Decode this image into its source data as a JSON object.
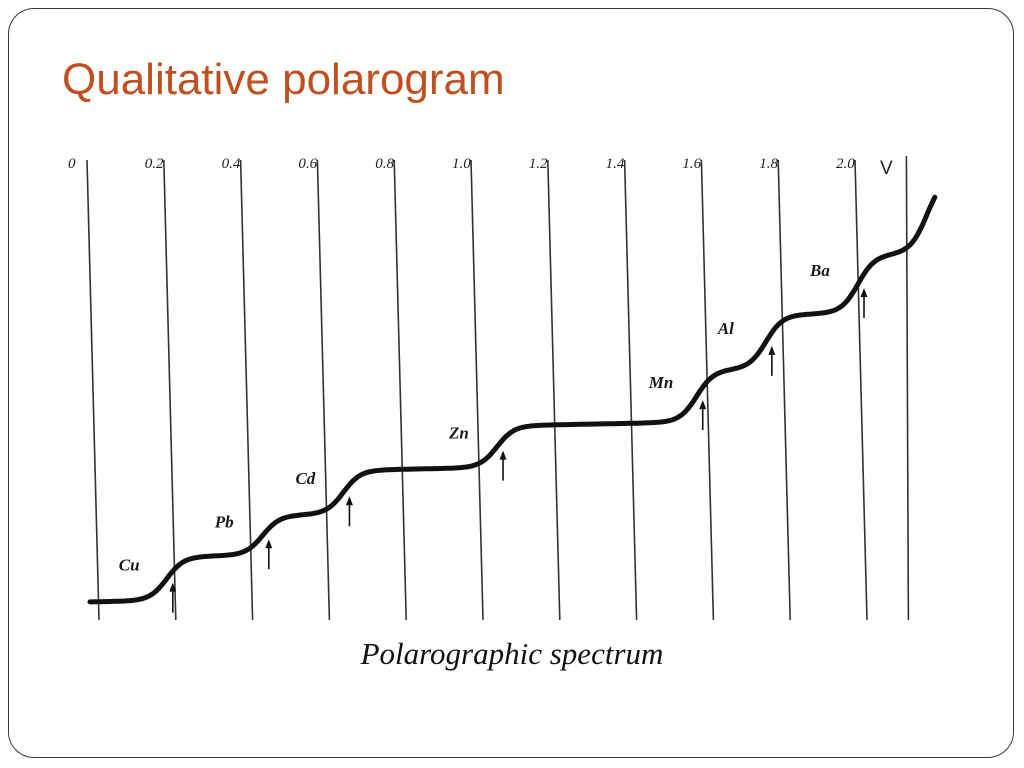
{
  "slide": {
    "title": "Qualitative polarogram",
    "caption": "Polarographic spectrum"
  },
  "chart_data": {
    "type": "line",
    "title": "",
    "xlabel": "",
    "ylabel": "",
    "x_unit": "V",
    "xlim": [
      0,
      2.0
    ],
    "ylim": [
      0,
      8
    ],
    "grid": true,
    "x_ticks": [
      {
        "value": 0,
        "label": "0"
      },
      {
        "value": 0.2,
        "label": "0.2"
      },
      {
        "value": 0.4,
        "label": "0.4"
      },
      {
        "value": 0.6,
        "label": "0.6"
      },
      {
        "value": 0.8,
        "label": "0.8"
      },
      {
        "value": 1.0,
        "label": "1.0"
      },
      {
        "value": 1.2,
        "label": "1.2"
      },
      {
        "value": 1.4,
        "label": "1.4"
      },
      {
        "value": 1.6,
        "label": "1.6"
      },
      {
        "value": 1.8,
        "label": "1.8"
      },
      {
        "value": 2.0,
        "label": "2.0"
      }
    ],
    "waves": [
      {
        "label": "Cu",
        "half_wave_potential": 0.2,
        "height": 1.05
      },
      {
        "label": "Pb",
        "half_wave_potential": 0.45,
        "height": 0.95
      },
      {
        "label": "Cd",
        "half_wave_potential": 0.66,
        "height": 1.05
      },
      {
        "label": "Zn",
        "half_wave_potential": 1.06,
        "height": 1.0
      },
      {
        "label": "Mn",
        "half_wave_potential": 1.58,
        "height": 1.25
      },
      {
        "label": "Al",
        "half_wave_potential": 1.76,
        "height": 1.3
      },
      {
        "label": "Ba",
        "half_wave_potential": 2.0,
        "height": 1.4
      }
    ],
    "final_rise": {
      "potential": 2.18,
      "height": 1.9
    }
  }
}
